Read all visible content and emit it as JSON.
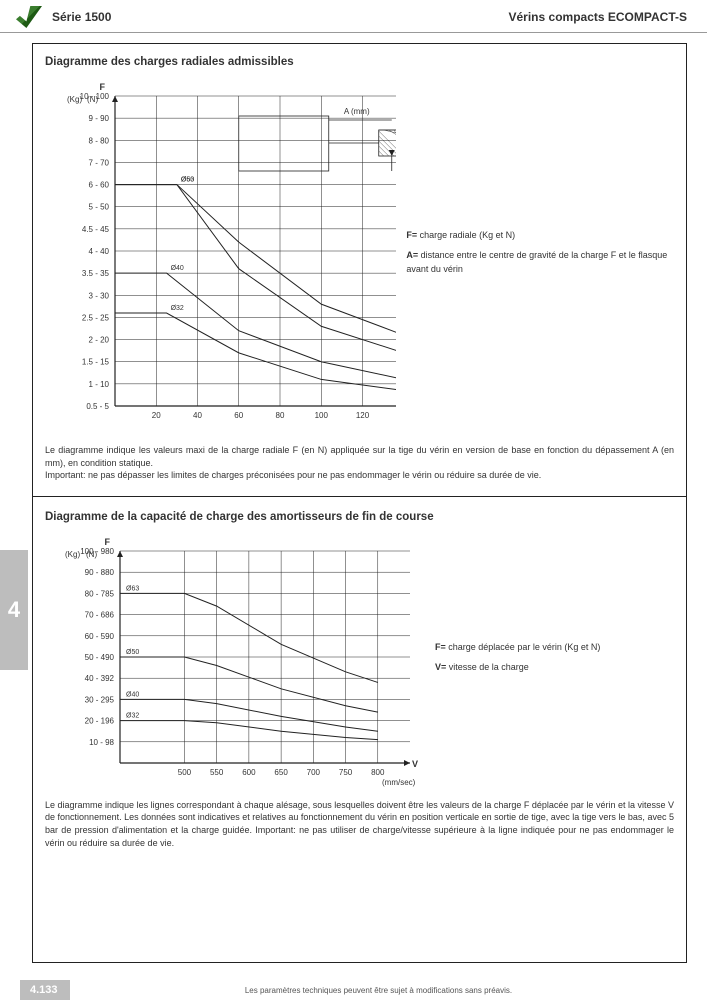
{
  "header": {
    "series": "Série 1500",
    "product": "Vérins compacts ECOMPACT-S"
  },
  "section1": {
    "title": "Diagramme des charges radiales admissibles",
    "chart": {
      "type": "line",
      "y_unit_left": "(Kg)",
      "y_unit_right": "(N)",
      "y_axis_title": "F",
      "x_axis_title": "A",
      "x_unit": "(mm)",
      "xlim": [
        0,
        160
      ],
      "x_tick_start": 20,
      "x_tick_step": 20,
      "ylim": [
        0,
        10
      ],
      "y_ticks_kg": [
        0.5,
        1,
        1.5,
        2,
        2.5,
        3,
        3.5,
        4,
        4.5,
        5,
        6,
        7,
        8,
        9,
        10
      ],
      "y_ticks_n": [
        5,
        10,
        15,
        20,
        25,
        30,
        35,
        40,
        45,
        50,
        60,
        70,
        80,
        90,
        100
      ],
      "grid_color": "#222222",
      "grid_width": 0.5,
      "background_color": "#ffffff",
      "curves": [
        {
          "label": "Ø63",
          "flat_end_x": 30,
          "flat_y": 6.0,
          "points": [
            [
              30,
              6.0
            ],
            [
              60,
              4.2
            ],
            [
              100,
              2.8
            ],
            [
              140,
              2.1
            ],
            [
              160,
              1.9
            ]
          ]
        },
        {
          "label": "Ø50",
          "flat_end_x": 30,
          "flat_y": 6.0,
          "points": [
            [
              30,
              6.0
            ],
            [
              60,
              3.6
            ],
            [
              100,
              2.3
            ],
            [
              140,
              1.7
            ],
            [
              160,
              1.5
            ]
          ]
        },
        {
          "label": "Ø40",
          "flat_end_x": 25,
          "flat_y": 3.5,
          "points": [
            [
              25,
              3.5
            ],
            [
              60,
              2.2
            ],
            [
              100,
              1.5
            ],
            [
              140,
              1.1
            ],
            [
              160,
              1.0
            ]
          ]
        },
        {
          "label": "Ø32",
          "flat_end_x": 25,
          "flat_y": 2.6,
          "points": [
            [
              25,
              2.6
            ],
            [
              60,
              1.7
            ],
            [
              100,
              1.1
            ],
            [
              140,
              0.85
            ],
            [
              160,
              0.75
            ]
          ]
        }
      ],
      "curve_color": "#222222"
    },
    "legend": {
      "F": "charge radiale (Kg et N)",
      "A": "distance entre le centre de gravité de la charge F et le flasque avant du vérin"
    },
    "desc": [
      "Le diagramme indique les valeurs maxi de la charge radiale F (en N) appliquée sur la tige du vérin en version de base en fonction du dépassement A (en mm), en condition statique.",
      "Important: ne pas dépasser les limites de charges préconisées pour ne pas endommager le vérin ou réduire sa durée de vie."
    ]
  },
  "section2": {
    "title": "Diagramme de la capacité de charge des amortisseurs de fin de course",
    "chart": {
      "type": "line",
      "y_unit_left": "(Kg)",
      "y_unit_right": "(N)",
      "y_axis_title": "F",
      "x_axis_title": "V",
      "x_unit": "(mm/sec)",
      "xlim": [
        400,
        850
      ],
      "x_tick_start": 500,
      "x_tick_step": 50,
      "x_tick_end": 800,
      "ylim": [
        0,
        100
      ],
      "y_ticks_kg": [
        10,
        20,
        30,
        40,
        50,
        60,
        70,
        80,
        90,
        100
      ],
      "y_ticks_n": [
        98,
        196,
        295,
        392,
        490,
        590,
        686,
        785,
        880,
        980
      ],
      "grid_color": "#222222",
      "grid_width": 0.5,
      "background_color": "#ffffff",
      "curves": [
        {
          "label": "Ø63",
          "points": [
            [
              400,
              80
            ],
            [
              500,
              80
            ],
            [
              550,
              74
            ],
            [
              650,
              56
            ],
            [
              750,
              43
            ],
            [
              800,
              38
            ]
          ]
        },
        {
          "label": "Ø50",
          "points": [
            [
              400,
              50
            ],
            [
              500,
              50
            ],
            [
              550,
              46
            ],
            [
              650,
              35
            ],
            [
              750,
              27
            ],
            [
              800,
              24
            ]
          ]
        },
        {
          "label": "Ø40",
          "points": [
            [
              400,
              30
            ],
            [
              500,
              30
            ],
            [
              550,
              28
            ],
            [
              650,
              22
            ],
            [
              750,
              17
            ],
            [
              800,
              15
            ]
          ]
        },
        {
          "label": "Ø32",
          "points": [
            [
              400,
              20
            ],
            [
              500,
              20
            ],
            [
              550,
              19
            ],
            [
              650,
              15
            ],
            [
              750,
              12
            ],
            [
              800,
              11
            ]
          ]
        }
      ],
      "curve_color": "#222222"
    },
    "legend": {
      "F": "charge déplacée par le vérin (Kg et N)",
      "V": "vitesse de la charge"
    },
    "desc": [
      "Le diagramme indique les lignes correspondant à chaque alésage, sous lesquelles doivent être les valeurs de la charge F déplacée par le vérin et la vitesse V de fonctionnement. Les données sont indicatives et relatives au fonctionnement du vérin en position verticale en sortie de tige, avec la tige vers le bas, avec 5 bar de pression d'alimentation et la charge guidée. Important: ne pas utiliser de charge/vitesse supérieure à la ligne indiquée pour ne pas endommager le vérin ou réduire sa durée de vie."
    ]
  },
  "side_tab": "4",
  "footer": {
    "page": "4.133",
    "note": "Les paramètres techniques peuvent être sujet à modifications sans préavis."
  }
}
